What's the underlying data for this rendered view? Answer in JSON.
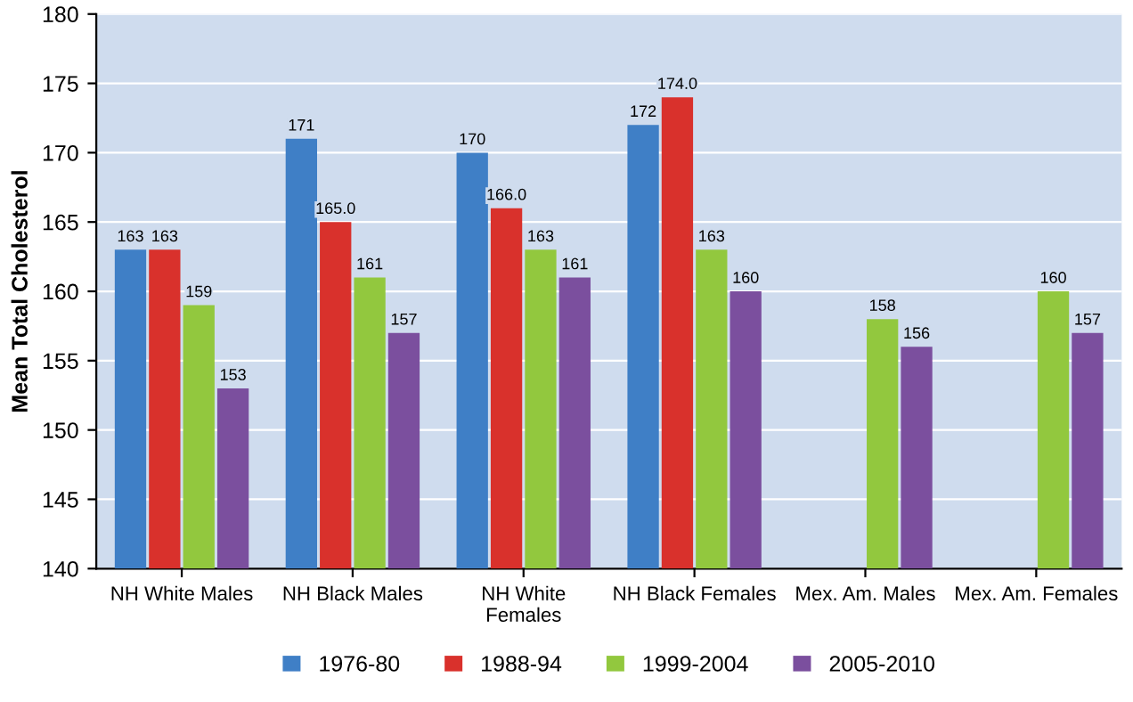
{
  "chart_data": {
    "type": "bar",
    "ylabel": "Mean Total Cholesterol",
    "categories": [
      "NH White Males",
      "NH Black Males",
      "NH White\nFemales",
      "NH Black Females",
      "Mex. Am. Males",
      "Mex. Am. Females"
    ],
    "series": [
      {
        "name": "1976-80",
        "color": "#3f7fc6",
        "values": [
          163,
          171,
          170,
          172,
          null,
          null
        ],
        "value_labels": [
          "163",
          "171",
          "170",
          "172",
          null,
          null
        ]
      },
      {
        "name": "1988-94",
        "color": "#d9312c",
        "values": [
          163,
          165.0,
          166.0,
          174.0,
          null,
          null
        ],
        "value_labels": [
          "163",
          "165.0",
          "166.0",
          "174.0",
          null,
          null
        ]
      },
      {
        "name": "1999-2004",
        "color": "#92c83e",
        "values": [
          159,
          161,
          163,
          163,
          158,
          160
        ],
        "value_labels": [
          "159",
          "161",
          "163",
          "163",
          "158",
          "160"
        ]
      },
      {
        "name": "2005-2010",
        "color": "#7b4f9e",
        "values": [
          153,
          157,
          161,
          160,
          156,
          157
        ],
        "value_labels": [
          "153",
          "157",
          "161",
          "160",
          "156",
          "157"
        ]
      }
    ],
    "ylim": [
      140,
      180
    ],
    "yticks": [
      140,
      145,
      150,
      155,
      160,
      165,
      170,
      175,
      180
    ],
    "grid": "y",
    "legend": "bottom"
  }
}
